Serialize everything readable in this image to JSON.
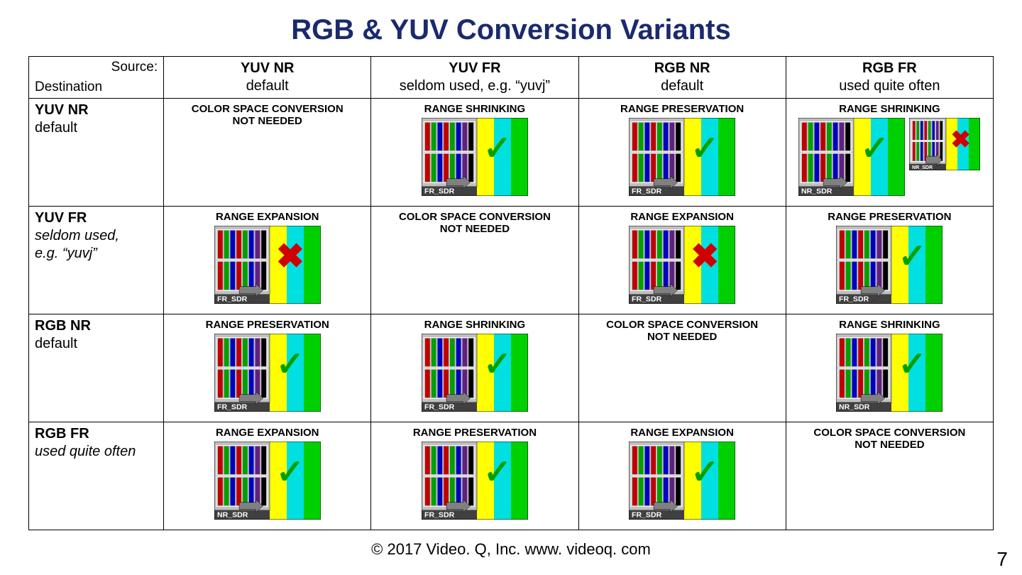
{
  "title": "RGB & YUV Conversion Variants",
  "corner": {
    "source": "Source:",
    "destination": "Destination"
  },
  "columns": [
    {
      "label": "YUV NR",
      "sub": "default"
    },
    {
      "label": "YUV FR",
      "sub": "seldom used, e.g. “yuvj”"
    },
    {
      "label": "RGB NR",
      "sub": "default"
    },
    {
      "label": "RGB FR",
      "sub": "used quite often"
    }
  ],
  "rows": [
    {
      "label": "YUV NR",
      "sub": "default",
      "sub_italic": false
    },
    {
      "label": "YUV FR",
      "sub": "seldom used,\ne.g. “yuvj”",
      "sub_italic": true
    },
    {
      "label": "RGB NR",
      "sub": "default",
      "sub_italic": false
    },
    {
      "label": "RGB FR",
      "sub": "used quite often",
      "sub_italic": true
    }
  ],
  "cells": [
    [
      {
        "label": "COLOR SPACE CONVERSION\nNOT NEEDED",
        "thumb": null
      },
      {
        "label": "RANGE SHRINKING",
        "thumb": {
          "tag": "FR_SDR",
          "bars_type": "narrow",
          "mark": "check"
        }
      },
      {
        "label": "RANGE PRESERVATION",
        "thumb": {
          "tag": "FR_SDR",
          "bars_type": "narrow",
          "mark": "check"
        }
      },
      {
        "label": "RANGE SHRINKING",
        "thumb_dual": [
          {
            "tag": "NR_SDR",
            "bars_type": "narrow",
            "mark": "check"
          },
          {
            "tag": "NR_SDR",
            "bars_type": "narrow",
            "mark": "cross",
            "small": true
          }
        ]
      }
    ],
    [
      {
        "label": "RANGE EXPANSION",
        "thumb": {
          "tag": "FR_SDR",
          "bars_type": "narrow",
          "mark": "cross"
        }
      },
      {
        "label": "COLOR SPACE CONVERSION\nNOT NEEDED",
        "thumb": null
      },
      {
        "label": "RANGE EXPANSION",
        "thumb": {
          "tag": "FR_SDR",
          "bars_type": "narrow",
          "mark": "cross"
        }
      },
      {
        "label": "RANGE PRESERVATION",
        "thumb": {
          "tag": "FR_SDR",
          "bars_type": "narrow",
          "mark": "check"
        }
      }
    ],
    [
      {
        "label": "RANGE PRESERVATION",
        "thumb": {
          "tag": "FR_SDR",
          "bars_type": "narrow",
          "mark": "check"
        }
      },
      {
        "label": "RANGE SHRINKING",
        "thumb": {
          "tag": "FR_SDR",
          "bars_type": "narrow",
          "mark": "check"
        }
      },
      {
        "label": "COLOR SPACE CONVERSION\nNOT NEEDED",
        "thumb": null
      },
      {
        "label": "RANGE SHRINKING",
        "thumb": {
          "tag": "NR_SDR",
          "bars_type": "narrow",
          "mark": "check"
        }
      }
    ],
    [
      {
        "label": "RANGE EXPANSION",
        "thumb": {
          "tag": "NR_SDR",
          "bars_type": "narrow",
          "mark": "check"
        }
      },
      {
        "label": "RANGE PRESERVATION",
        "thumb": {
          "tag": "FR_SDR",
          "bars_type": "narrow",
          "mark": "check"
        }
      },
      {
        "label": "RANGE EXPANSION",
        "thumb": {
          "tag": "FR_SDR",
          "bars_type": "narrow",
          "mark": "check"
        }
      },
      {
        "label": "COLOR SPACE CONVERSION\nNOT NEEDED",
        "thumb": null
      }
    ]
  ],
  "thumb_style": {
    "width": 150,
    "height": 110,
    "small_width": 100,
    "small_height": 74,
    "bg_upper": "#000000",
    "bar_zone_bg": "#c0c0c0",
    "bar_colors": [
      "#c00000",
      "#00a000",
      "#0000c0",
      "#c00000",
      "#00a000",
      "#0000c0",
      "#602080",
      "#000000"
    ],
    "stripe_yellow": "#ffff00",
    "stripe_cyan": "#00e0e0",
    "stripe_green": "#00d000",
    "tag_bg": "#404040",
    "tag_text": "#ffffff",
    "arrow_color": "#808080",
    "border": "#000000"
  },
  "footer": "© 2017 Video. Q, Inc. www. videoq. com",
  "page_number": "7",
  "colors": {
    "title": "#1a2a6c",
    "check": "#00a000",
    "cross": "#d00000"
  }
}
